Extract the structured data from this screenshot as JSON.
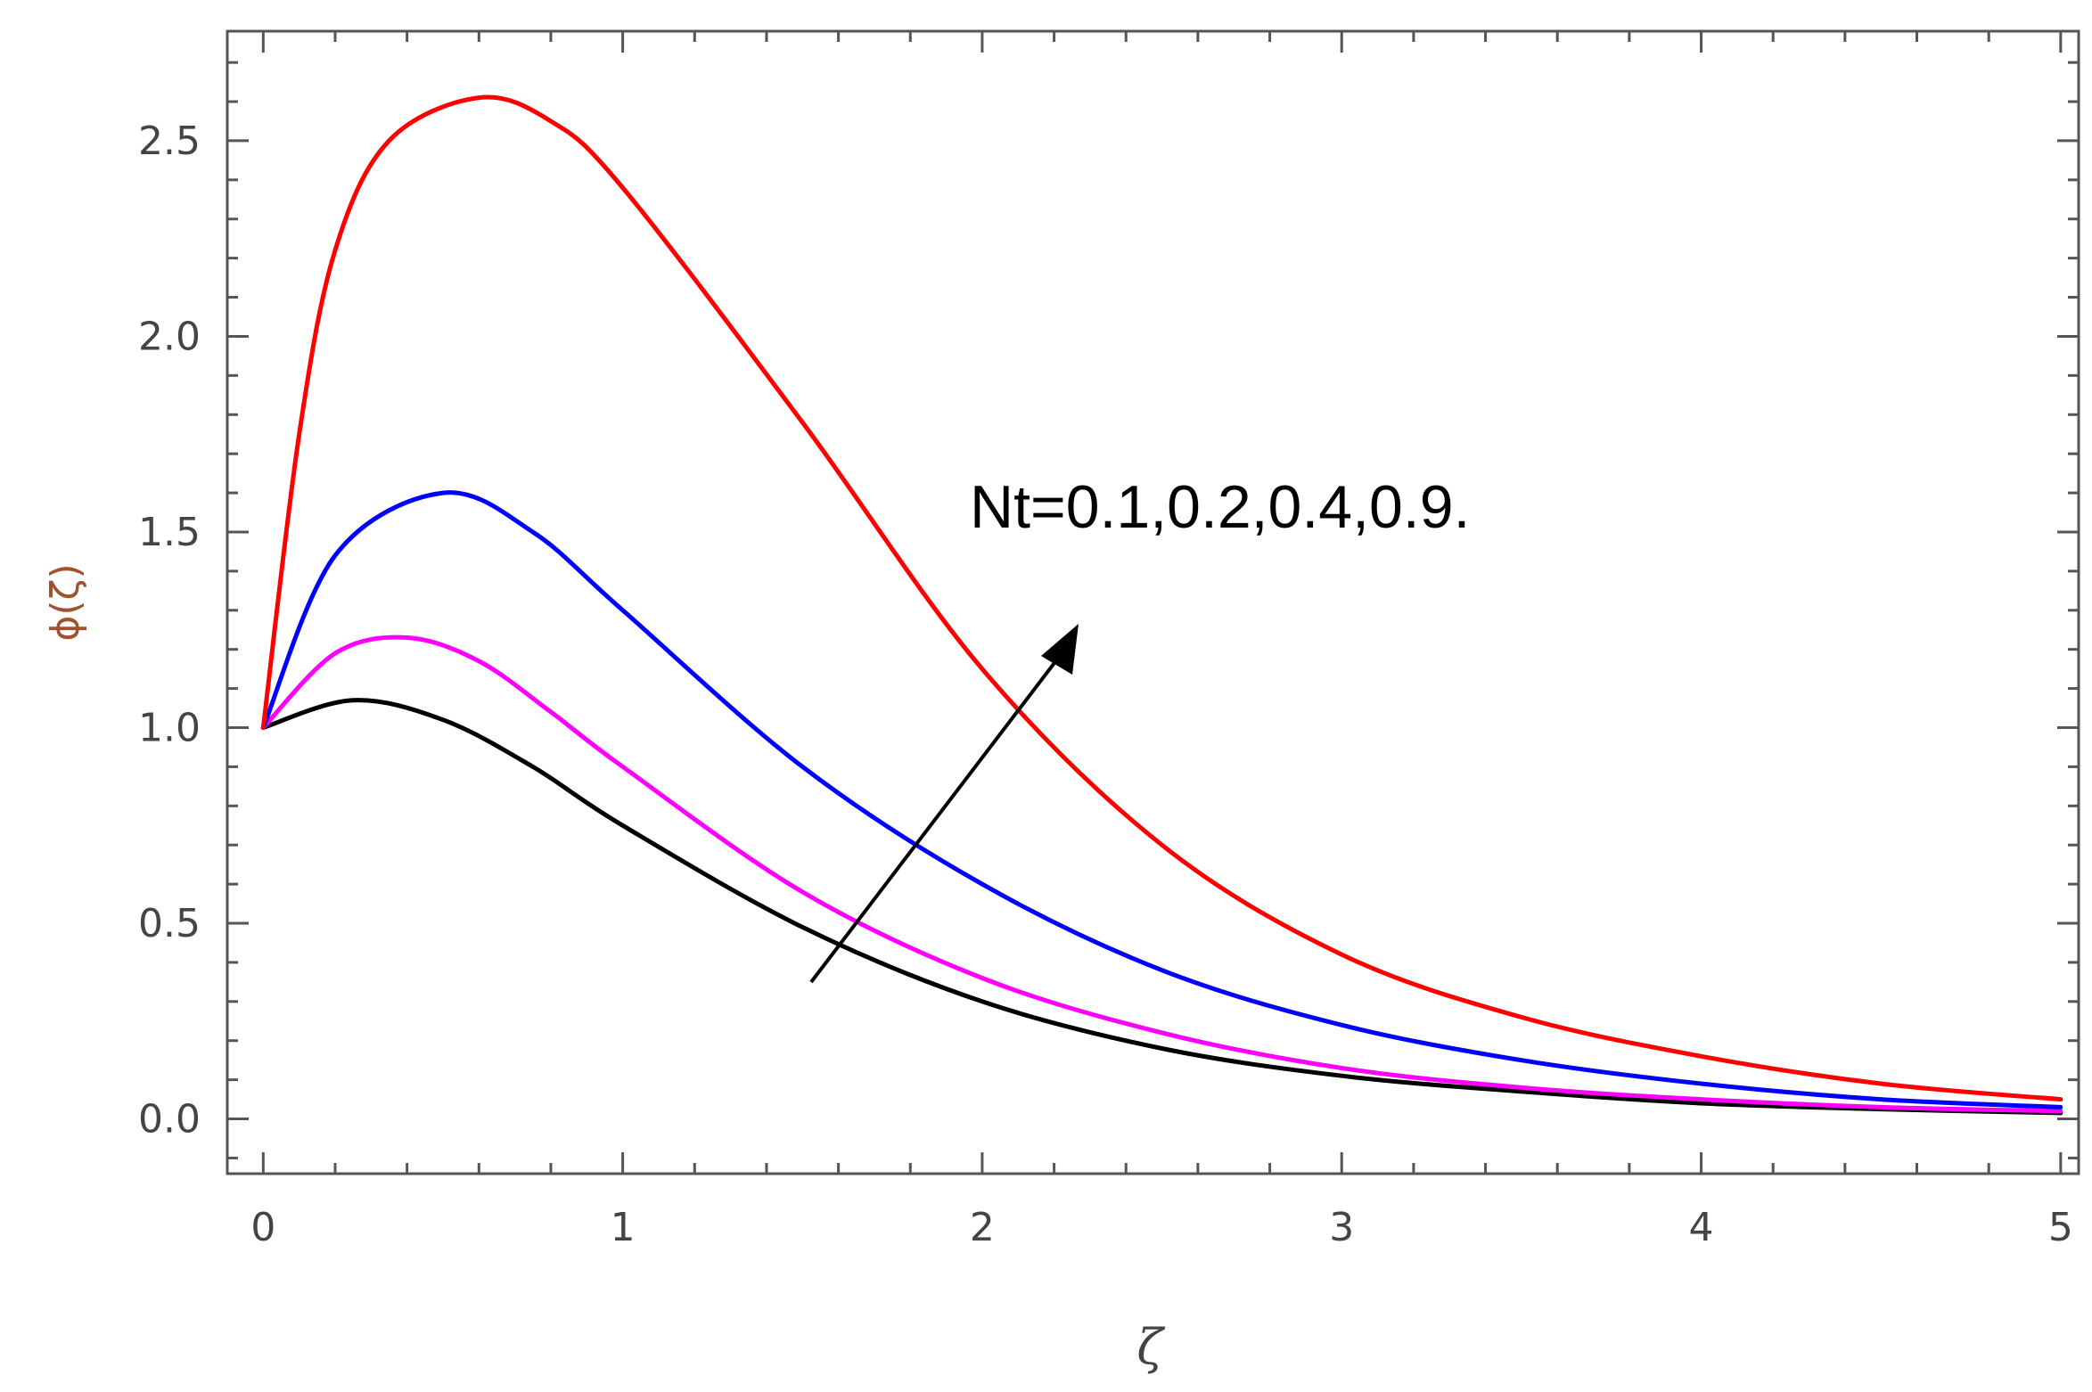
{
  "chart_data": {
    "type": "line",
    "xlabel": "ζ",
    "ylabel": "ϕ(ζ)",
    "xlim": [
      -0.1,
      5.05
    ],
    "ylim": [
      -0.14,
      2.78
    ],
    "x_ticks": [
      "0",
      "1",
      "2",
      "3",
      "4",
      "5"
    ],
    "y_ticks": [
      "0.0",
      "0.5",
      "1.0",
      "1.5",
      "2.0",
      "2.5"
    ],
    "grid": false,
    "legend": "none",
    "annotation": "Nt=0.1,0.2,0.4,0.9.",
    "series": [
      {
        "color": "#000000",
        "x": [
          0,
          0.25,
          0.5,
          0.75,
          1.0,
          1.5,
          2.0,
          2.5,
          3.0,
          3.5,
          4.0,
          4.5,
          5.0
        ],
        "values": [
          1.0,
          1.07,
          1.02,
          0.9,
          0.75,
          0.49,
          0.3,
          0.18,
          0.11,
          0.07,
          0.04,
          0.025,
          0.015
        ]
      },
      {
        "color": "#ff00ff",
        "x": [
          0,
          0.2,
          0.4,
          0.6,
          0.8,
          1.0,
          1.5,
          2.0,
          2.5,
          3.0,
          3.5,
          4.0,
          4.5,
          5.0
        ],
        "values": [
          1.0,
          1.19,
          1.23,
          1.17,
          1.04,
          0.9,
          0.58,
          0.36,
          0.22,
          0.13,
          0.08,
          0.05,
          0.03,
          0.02
        ]
      },
      {
        "color": "#0000ff",
        "x": [
          0,
          0.2,
          0.5,
          0.75,
          1.0,
          1.5,
          2.0,
          2.5,
          3.0,
          3.5,
          4.0,
          4.5,
          5.0
        ],
        "values": [
          1.0,
          1.44,
          1.6,
          1.5,
          1.3,
          0.9,
          0.6,
          0.38,
          0.24,
          0.15,
          0.09,
          0.05,
          0.03
        ]
      },
      {
        "color": "#ff0000",
        "x": [
          0,
          0.1,
          0.2,
          0.35,
          0.6,
          0.8,
          1.0,
          1.5,
          2.0,
          2.5,
          3.0,
          3.5,
          4.0,
          4.5,
          5.0
        ],
        "values": [
          1.0,
          1.75,
          2.22,
          2.5,
          2.61,
          2.55,
          2.38,
          1.78,
          1.15,
          0.7,
          0.42,
          0.26,
          0.16,
          0.09,
          0.05
        ]
      }
    ]
  }
}
